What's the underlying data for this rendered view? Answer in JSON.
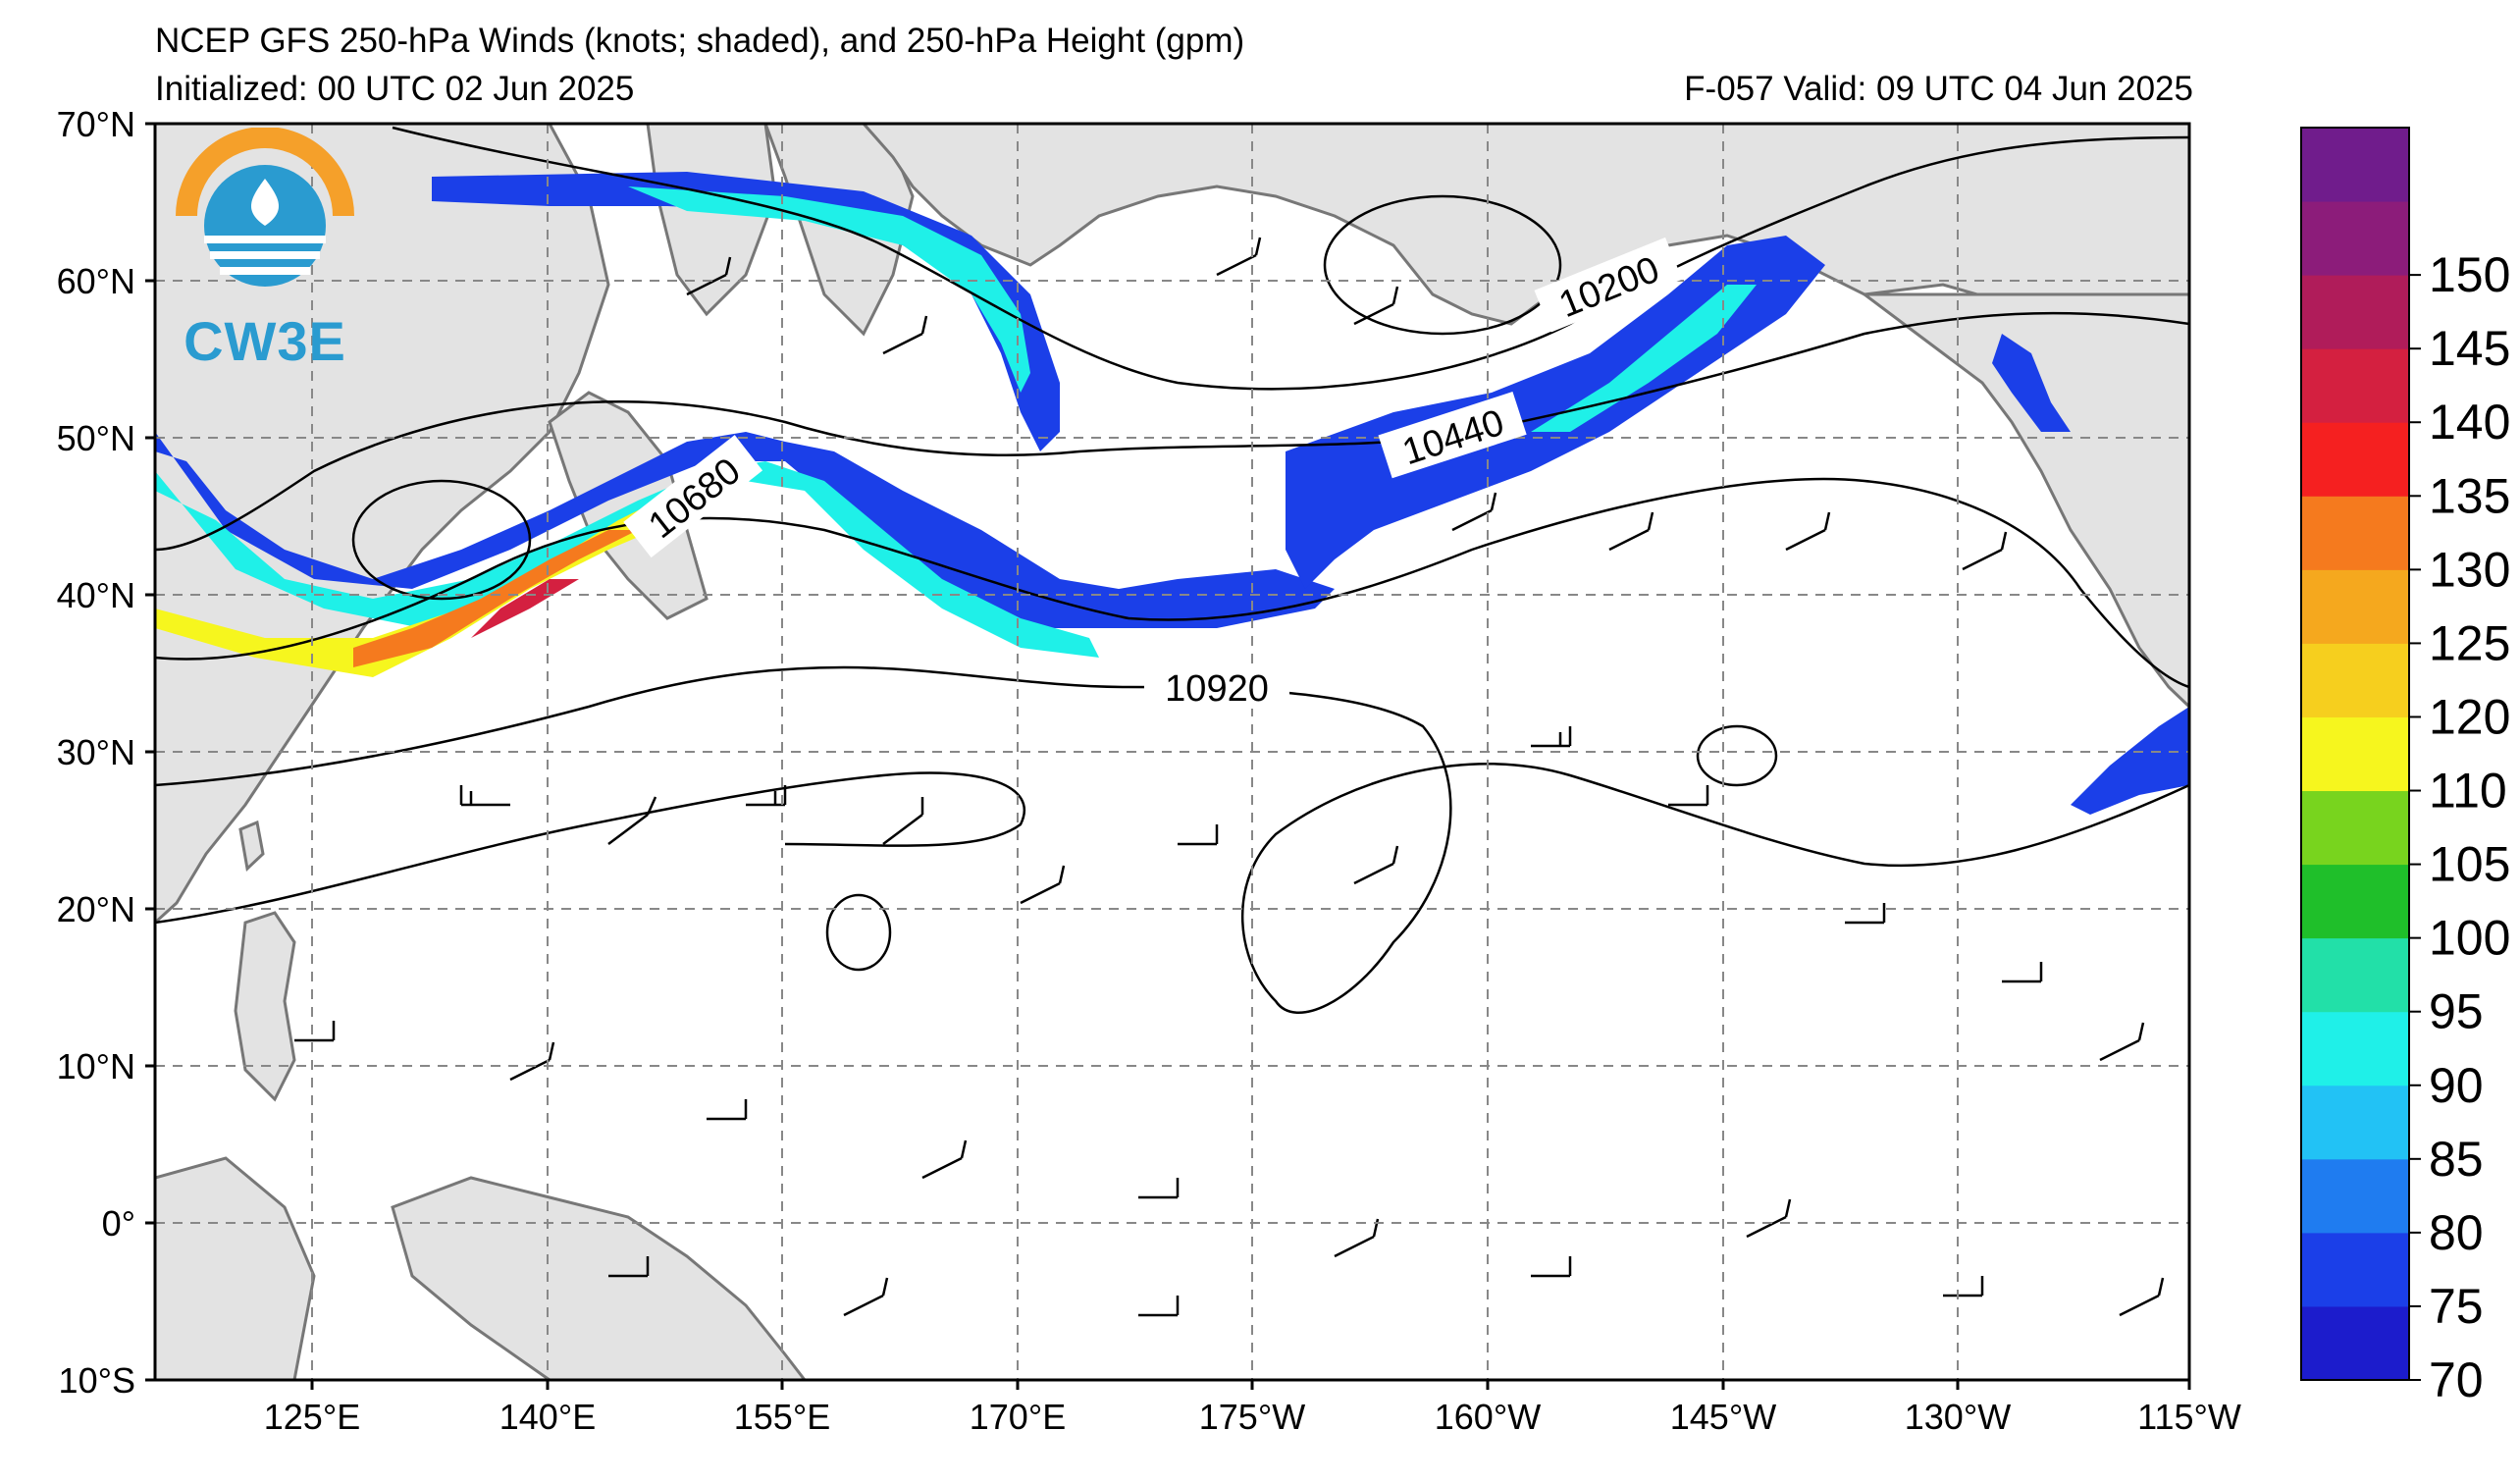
{
  "header": {
    "title": "NCEP GFS 250-hPa Winds (knots; shaded), and 250-hPa Height (gpm)",
    "initialized": "Initialized: 00 UTC 02 Jun 2025",
    "valid": "F-057  Valid: 09 UTC 04 Jun 2025"
  },
  "logo": {
    "text": "CW3E"
  },
  "axes": {
    "lat_labels": [
      "70°N",
      "60°N",
      "50°N",
      "40°N",
      "30°N",
      "20°N",
      "10°N",
      "0°",
      "10°S"
    ],
    "lon_labels": [
      "125°E",
      "140°E",
      "155°E",
      "170°E",
      "175°W",
      "160°W",
      "145°W",
      "130°W",
      "115°W"
    ]
  },
  "colorbar": {
    "labels": [
      "70",
      "75",
      "80",
      "85",
      "90",
      "95",
      "100",
      "105",
      "110",
      "120",
      "125",
      "130",
      "135",
      "140",
      "145",
      "150"
    ],
    "colors": [
      "#1c1ccc",
      "#1b3fe8",
      "#1f7cf0",
      "#22c2f5",
      "#1ff0e8",
      "#22e0a8",
      "#1fbf2a",
      "#78d41e",
      "#f6f61e",
      "#f6cf1e",
      "#f5a81e",
      "#f57a1e",
      "#f52020",
      "#d42040",
      "#b01c5a",
      "#8c1c7a",
      "#701c8c"
    ]
  },
  "contour_labels": {
    "c1": "10200",
    "c2": "10440",
    "c3": "10680",
    "c4": "10920"
  },
  "colors": {
    "land": "#e3e3e3",
    "coast": "#777777",
    "grid": "#888888"
  }
}
